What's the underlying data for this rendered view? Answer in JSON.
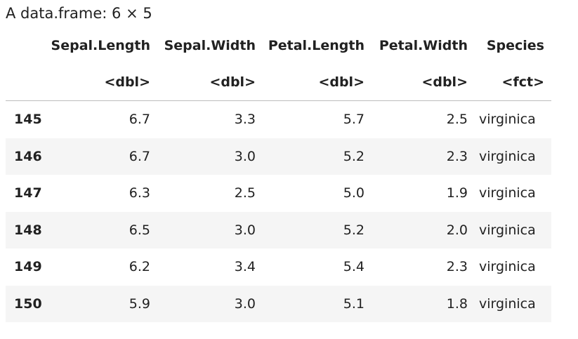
{
  "caption": "A data.frame: 6 × 5",
  "columns": [
    {
      "name": "Sepal.Length",
      "type": "<dbl>"
    },
    {
      "name": "Sepal.Width",
      "type": "<dbl>"
    },
    {
      "name": "Petal.Length",
      "type": "<dbl>"
    },
    {
      "name": "Petal.Width",
      "type": "<dbl>"
    },
    {
      "name": "Species",
      "type": "<fct>"
    }
  ],
  "rows": [
    {
      "index": "145",
      "cells": [
        "6.7",
        "3.3",
        "5.7",
        "2.5",
        "virginica"
      ]
    },
    {
      "index": "146",
      "cells": [
        "6.7",
        "3.0",
        "5.2",
        "2.3",
        "virginica"
      ]
    },
    {
      "index": "147",
      "cells": [
        "6.3",
        "2.5",
        "5.0",
        "1.9",
        "virginica"
      ]
    },
    {
      "index": "148",
      "cells": [
        "6.5",
        "3.0",
        "5.2",
        "2.0",
        "virginica"
      ]
    },
    {
      "index": "149",
      "cells": [
        "6.2",
        "3.4",
        "5.4",
        "2.3",
        "virginica"
      ]
    },
    {
      "index": "150",
      "cells": [
        "5.9",
        "3.0",
        "5.1",
        "1.8",
        "virginica"
      ]
    }
  ]
}
